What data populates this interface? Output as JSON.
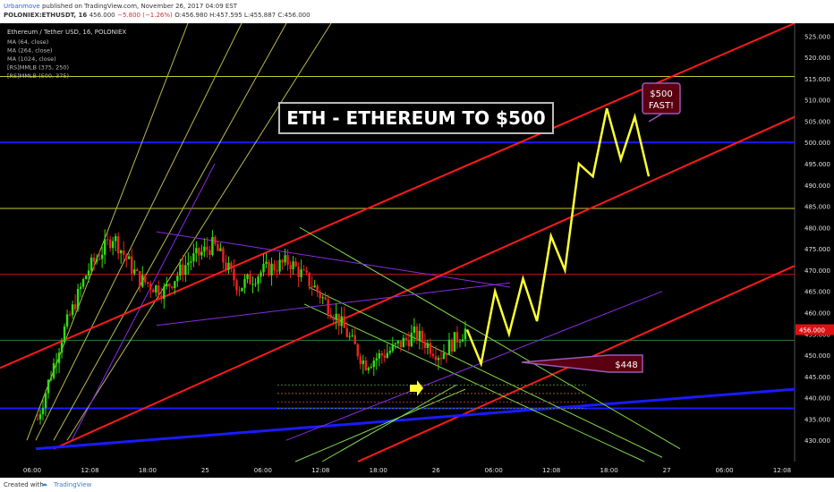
{
  "header": {
    "author": "Urbanmove",
    "published": "published on TradingView.com, November 26, 2017 04:09 EST",
    "symbol": "POLONIEX:ETHUSDT, 16",
    "last": "456.000",
    "change": "−5.800 (−1.26%)",
    "ohlc": "O:456.980 H:457.595 L:455.887 C:456.000"
  },
  "legend": {
    "title": "Ethereum / Tether USD, 16, POLONIEX",
    "items": [
      "MA (64, close)",
      "MA (264, close)",
      "MA (1024, close)",
      "[RS]MMLB (375, 250)",
      "[RS]MMLB (500, 375)"
    ]
  },
  "annotations": {
    "title": "ETH - ETHEREUM TO $500",
    "target_line1": "$500",
    "target_line2": "FAST!",
    "support_label": "$448"
  },
  "footer": {
    "created": "Created with",
    "brand": "TradingView"
  },
  "colors": {
    "background": "#000000",
    "up_candle": "#33dd11",
    "down_candle": "#ee2222",
    "projection": "#ffff33",
    "channel": "#ff1a1a",
    "blue_line": "#1a1aff",
    "green_channel": "#7fd84c",
    "purple": "#8a2be2",
    "price_tag": "#dd1111"
  },
  "chart_data": {
    "type": "candlestick",
    "y_range": [
      425,
      528
    ],
    "y_ticks": [
      430,
      435,
      440,
      445,
      450,
      455,
      460,
      465,
      470,
      475,
      480,
      485,
      490,
      495,
      500,
      505,
      510,
      515,
      520,
      525
    ],
    "x_tick_labels": [
      "06:00",
      "12:08",
      "18:00",
      "25",
      "06:00",
      "12:08",
      "18:00",
      "26",
      "06:00",
      "12:08",
      "18:00",
      "27",
      "06:00",
      "12:08"
    ],
    "last_price": "456.000",
    "horizontal_levels": [
      {
        "value": 500,
        "color": "blue"
      },
      {
        "value": 437.5,
        "color": "blue"
      },
      {
        "value": 515.5,
        "color": "olive"
      },
      {
        "value": 484.5,
        "color": "olive"
      },
      {
        "value": 469,
        "color": "red"
      },
      {
        "value": 453.5,
        "color": "green"
      }
    ],
    "price_path": [
      435,
      455,
      470,
      478,
      468,
      465,
      472,
      476,
      466,
      470,
      472,
      466,
      458,
      448,
      451,
      455,
      450,
      456
    ],
    "projection_path": [
      456,
      448,
      465,
      455,
      468,
      458,
      478,
      470,
      495,
      492,
      508,
      496,
      506,
      492
    ]
  }
}
